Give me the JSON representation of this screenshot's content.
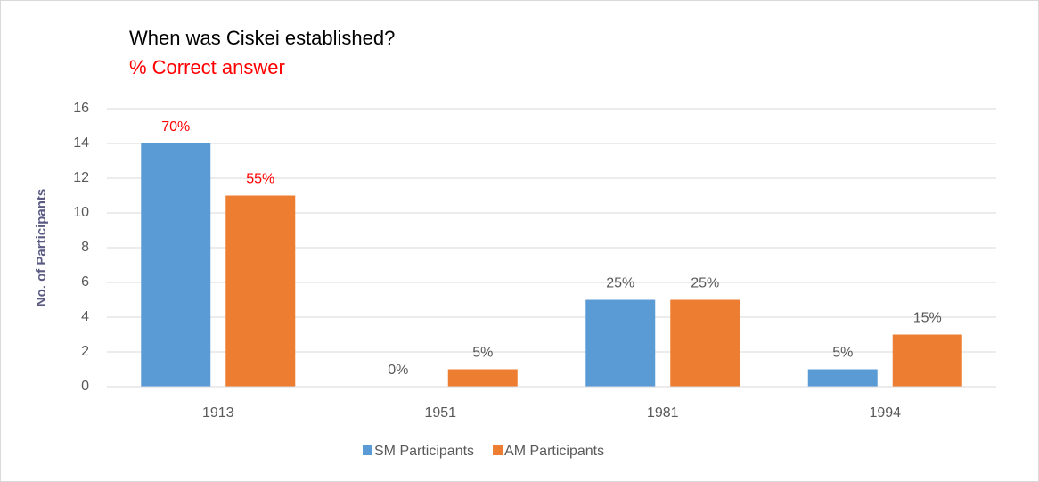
{
  "chart_data": {
    "type": "bar",
    "title": "When was Ciskei established?",
    "subtitle": "% Correct answer",
    "y_label": "No. of Participants",
    "categories": [
      "1913",
      "1951",
      "1981",
      "1994"
    ],
    "series": [
      {
        "name": "SM Participants",
        "color": "#5b9bd5",
        "values": [
          14,
          0,
          5,
          1
        ],
        "percent_labels": [
          "70%",
          "0%",
          "25%",
          "5%"
        ],
        "label_colors": [
          "#ff0000",
          "#595959",
          "#595959",
          "#595959"
        ]
      },
      {
        "name": "AM Participants",
        "color": "#ed7d31",
        "values": [
          11,
          1,
          5,
          3
        ],
        "percent_labels": [
          "55%",
          "5%",
          "25%",
          "15%"
        ],
        "label_colors": [
          "#ff0000",
          "#595959",
          "#595959",
          "#595959"
        ]
      }
    ],
    "ylim": [
      0,
      16
    ],
    "yticks": [
      0,
      2,
      4,
      6,
      8,
      10,
      12,
      14,
      16
    ],
    "grid": true,
    "legend": "bottom"
  }
}
